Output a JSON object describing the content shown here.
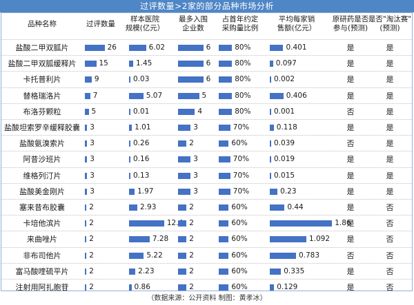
{
  "title": "过评数量>2家的部分品种市场分析",
  "headers": {
    "name": "品种名称",
    "count": "过评数量",
    "scale": "样本医院\n规模(亿元）",
    "max_ent": "最多入围\n企业数",
    "share": "占首年约定\n采购量比例",
    "avg_sales": "平均每家销\n售额(亿元）",
    "orig": "原研药是否\n参与(预测)",
    "elim": "是否\"淘汰赛\"\n(预测)"
  },
  "colors": {
    "bar": "#4472c4",
    "title_bg": "#4f86c6"
  },
  "rows": [
    {
      "name": "盐酸二甲双胍片",
      "count": "26",
      "scale": "6.02",
      "max_ent": "6",
      "share": "80%",
      "avg_sales": "0.401",
      "orig": "是",
      "elim": "是"
    },
    {
      "name": "盐酸二甲双胍缓释片",
      "count": "15",
      "scale": "1.45",
      "max_ent": "6",
      "share": "80%",
      "avg_sales": "0.097",
      "orig": "是",
      "elim": "是"
    },
    {
      "name": "卡托普利片",
      "count": "9",
      "scale": "0.03",
      "max_ent": "6",
      "share": "80%",
      "avg_sales": "0.002",
      "orig": "是",
      "elim": "是"
    },
    {
      "name": "替格瑞洛片",
      "count": "7",
      "scale": "5.07",
      "max_ent": "5",
      "share": "80%",
      "avg_sales": "0.406",
      "orig": "是",
      "elim": "是"
    },
    {
      "name": "布洛芬颗粒",
      "count": "5",
      "scale": "0.01",
      "max_ent": "4",
      "share": "80%",
      "avg_sales": "0.001",
      "orig": "否",
      "elim": "是"
    },
    {
      "name": "盐酸坦索罗辛缓释胶囊",
      "count": "3",
      "scale": "1.01",
      "max_ent": "3",
      "share": "70%",
      "avg_sales": "0.118",
      "orig": "是",
      "elim": "是"
    },
    {
      "name": "盐酸氨溴索片",
      "count": "3",
      "scale": "0.26",
      "max_ent": "2",
      "share": "60%",
      "avg_sales": "0.039",
      "orig": "否",
      "elim": "是"
    },
    {
      "name": "阿昔沙班片",
      "count": "3",
      "scale": "0.16",
      "max_ent": "3",
      "share": "70%",
      "avg_sales": "0.019",
      "orig": "是",
      "elim": "是"
    },
    {
      "name": "维格列汀片",
      "count": "3",
      "scale": "0.13",
      "max_ent": "3",
      "share": "70%",
      "avg_sales": "0.015",
      "orig": "是",
      "elim": "是"
    },
    {
      "name": "盐酸美金刚片",
      "count": "3",
      "scale": "1.97",
      "max_ent": "3",
      "share": "70%",
      "avg_sales": "0.23",
      "orig": "是",
      "elim": "是"
    },
    {
      "name": "塞来昔布胶囊",
      "count": "2",
      "scale": "2.93",
      "max_ent": "2",
      "share": "60%",
      "avg_sales": "0.44",
      "orig": "是",
      "elim": "否"
    },
    {
      "name": "卡培他滨片",
      "count": "2",
      "scale": "12.4",
      "max_ent": "2",
      "share": "60%",
      "avg_sales": "1.86",
      "orig": "是",
      "elim": "否"
    },
    {
      "name": "来曲唑片",
      "count": "2",
      "scale": "7.28",
      "max_ent": "2",
      "share": "60%",
      "avg_sales": "1.092",
      "orig": "是",
      "elim": "否"
    },
    {
      "name": "非布司他片",
      "count": "2",
      "scale": "5.22",
      "max_ent": "2",
      "share": "60%",
      "avg_sales": "0.783",
      "orig": "否",
      "elim": "否"
    },
    {
      "name": "富马酸喹硫平片",
      "count": "2",
      "scale": "2.23",
      "max_ent": "2",
      "share": "60%",
      "avg_sales": "0.335",
      "orig": "是",
      "elim": "否"
    },
    {
      "name": "注射用阿扎胞苷",
      "count": "2",
      "scale": "0.86",
      "max_ent": "2",
      "share": "60%",
      "avg_sales": "0.129",
      "orig": "是",
      "elim": "否"
    }
  ],
  "footer": "（数据来源：公开资料  制图：黄孝冰）"
}
